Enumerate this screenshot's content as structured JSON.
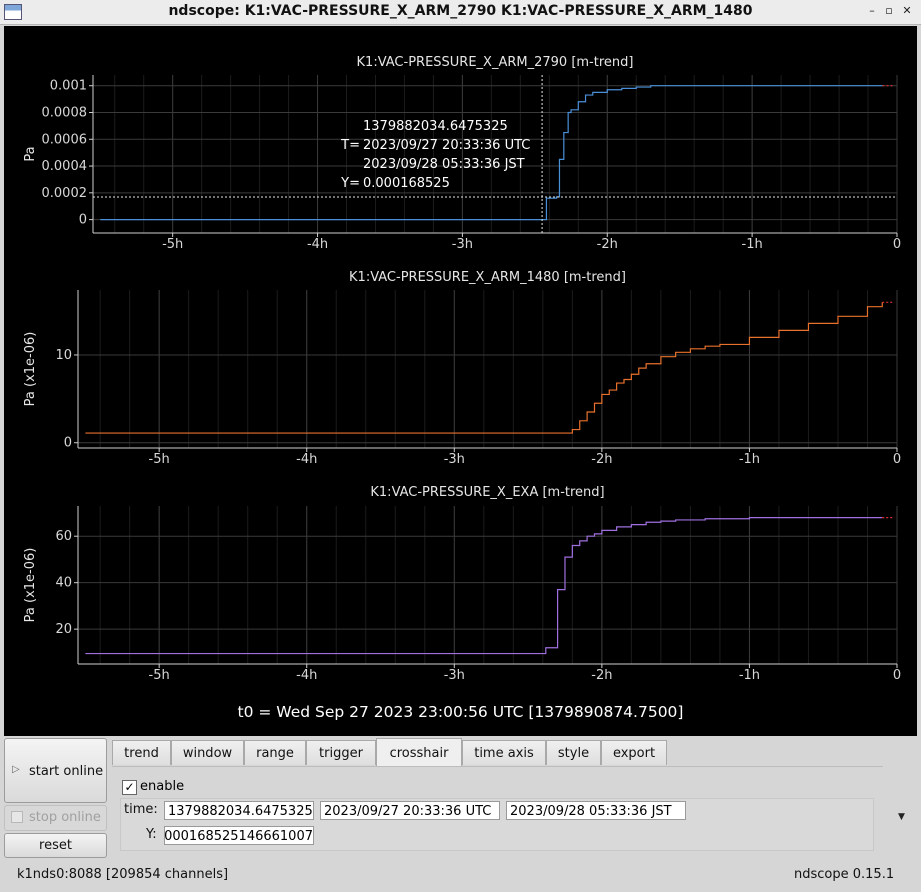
{
  "window": {
    "title": "ndscope: K1:VAC-PRESSURE_X_ARM_2790 K1:VAC-PRESSURE_X_ARM_1480",
    "minimize_glyph": "–",
    "maximize_glyph": "▫",
    "close_glyph": "✕"
  },
  "t0_label": "t0 = Wed Sep 27 2023 23:00:56 UTC [1379890874.7500]",
  "crosshair_overlay": {
    "gps": "1379882034.6475325",
    "t_label": "T=",
    "utc": "2023/09/27 20:33:36 UTC",
    "jst": "2023/09/28 05:33:36 JST",
    "y_label": "Y=",
    "y_value": "0.000168525"
  },
  "chart_data": [
    {
      "type": "line",
      "title": "K1:VAC-PRESSURE_X_ARM_2790 [m-trend]",
      "ylabel": "Pa",
      "color": "#4a90d9",
      "xlim": [
        -5.55,
        0
      ],
      "ylim": [
        -0.0001,
        0.00108
      ],
      "x_ticks": [
        -5,
        -4,
        -3,
        -2,
        -1,
        0
      ],
      "x_tick_labels": [
        "-5h",
        "-4h",
        "-3h",
        "-2h",
        "-1h",
        "0"
      ],
      "y_ticks": [
        0,
        0.0002,
        0.0004,
        0.0006,
        0.0008,
        0.001
      ],
      "y_tick_labels": [
        "0",
        "0.0002",
        "0.0004",
        "0.0006",
        "0.0008",
        "0.001"
      ],
      "grid": true,
      "series": [
        {
          "x": [
            -5.5,
            -2.45,
            -2.42,
            -2.35,
            -2.33,
            -2.3,
            -2.27,
            -2.25,
            -2.2,
            -2.15,
            -2.1,
            -2.0,
            -1.9,
            -1.8,
            -1.7,
            -1.5,
            -1.2,
            -0.1
          ],
          "y": [
            0,
            0,
            0.00016,
            0.00017,
            0.00045,
            0.00065,
            0.0008,
            0.00082,
            0.00088,
            0.00093,
            0.00095,
            0.00097,
            0.00098,
            0.00099,
            0.001,
            0.001,
            0.001,
            0.001
          ]
        }
      ]
    },
    {
      "type": "line",
      "title": "K1:VAC-PRESSURE_X_ARM_1480 [m-trend]",
      "ylabel": "Pa (x1e-06)",
      "color": "#e8712c",
      "xlim": [
        -5.55,
        0
      ],
      "ylim": [
        -0.6,
        17.4
      ],
      "x_ticks": [
        -5,
        -4,
        -3,
        -2,
        -1,
        0
      ],
      "x_tick_labels": [
        "-5h",
        "-4h",
        "-3h",
        "-2h",
        "-1h",
        "0"
      ],
      "y_ticks": [
        0,
        10
      ],
      "y_tick_labels": [
        "0",
        "10"
      ],
      "grid": true,
      "series": [
        {
          "x": [
            -5.5,
            -2.25,
            -2.2,
            -2.15,
            -2.1,
            -2.05,
            -2.0,
            -1.95,
            -1.9,
            -1.85,
            -1.8,
            -1.75,
            -1.7,
            -1.6,
            -1.5,
            -1.4,
            -1.3,
            -1.2,
            -1.0,
            -0.8,
            -0.6,
            -0.4,
            -0.2,
            -0.1
          ],
          "y": [
            1.1,
            1.1,
            1.5,
            2.5,
            3.5,
            4.5,
            5.5,
            6.0,
            6.8,
            7.2,
            7.8,
            8.5,
            9.0,
            9.8,
            10.3,
            10.7,
            11.0,
            11.2,
            12.0,
            12.8,
            13.6,
            14.4,
            15.5,
            16.0
          ]
        }
      ]
    },
    {
      "type": "line",
      "title": "K1:VAC-PRESSURE_X_EXA [m-trend]",
      "ylabel": "Pa (x1e-06)",
      "color": "#a070e0",
      "xlim": [
        -5.55,
        0
      ],
      "ylim": [
        5,
        73
      ],
      "x_ticks": [
        -5,
        -4,
        -3,
        -2,
        -1,
        0
      ],
      "x_tick_labels": [
        "-5h",
        "-4h",
        "-3h",
        "-2h",
        "-1h",
        "0"
      ],
      "y_ticks": [
        20,
        40,
        60
      ],
      "y_tick_labels": [
        "20",
        "40",
        "60"
      ],
      "grid": true,
      "series": [
        {
          "x": [
            -5.5,
            -2.45,
            -2.38,
            -2.3,
            -2.25,
            -2.2,
            -2.15,
            -2.1,
            -2.05,
            -2.0,
            -1.9,
            -1.8,
            -1.7,
            -1.6,
            -1.5,
            -1.3,
            -1.0,
            -0.7,
            -0.1
          ],
          "y": [
            9.5,
            9.5,
            12,
            37,
            51,
            56,
            58,
            60,
            61,
            62.5,
            64,
            65,
            66,
            66.5,
            67,
            67.5,
            68,
            68,
            68
          ]
        }
      ]
    }
  ],
  "controls": {
    "start_online": "start online",
    "stop_online": "stop online",
    "reset": "reset"
  },
  "tabs": [
    {
      "label": "trend"
    },
    {
      "label": "window"
    },
    {
      "label": "range"
    },
    {
      "label": "trigger"
    },
    {
      "label": "crosshair"
    },
    {
      "label": "time axis"
    },
    {
      "label": "style"
    },
    {
      "label": "export"
    }
  ],
  "crosshair_panel": {
    "enable_label": "enable",
    "enable_checked": true,
    "check_glyph": "✓",
    "time_label": "time:",
    "gps_value": "1379882034.6475325",
    "utc_value": "2023/09/27 20:33:36 UTC",
    "jst_value": "2023/09/28 05:33:36 JST",
    "y_label": "Y:",
    "y_value": "0.000168525146661007"
  },
  "status": {
    "server": "k1nds0:8088  [209854 channels]",
    "version": "ndscope 0.15.1"
  }
}
